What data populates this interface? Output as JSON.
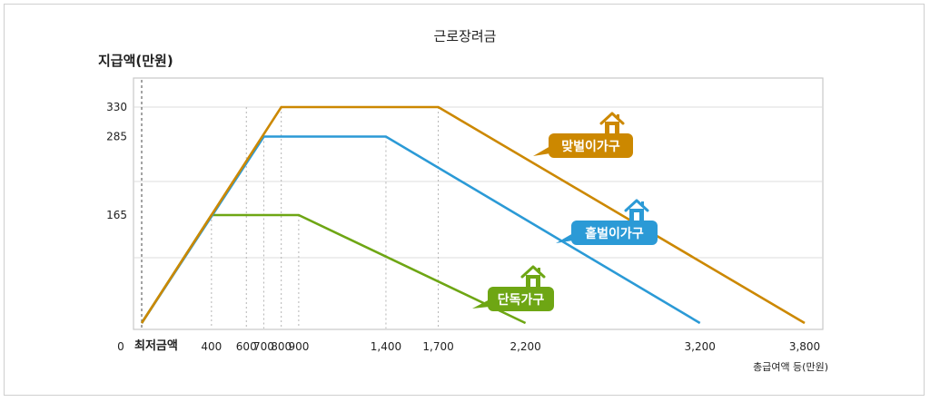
{
  "chart_data": {
    "type": "line",
    "title": "근로장려금",
    "ylabel": "지급액(만원)",
    "xlabel": "총급여액 등(만원)",
    "origin_label": "0",
    "min_wage_label": "최저금액",
    "x_ticks": [
      {
        "value": 400,
        "label": "400"
      },
      {
        "value": 600,
        "label": "600"
      },
      {
        "value": 700,
        "label": "700"
      },
      {
        "value": 800,
        "label": "800"
      },
      {
        "value": 900,
        "label": "900"
      },
      {
        "value": 1400,
        "label": "1,400"
      },
      {
        "value": 1700,
        "label": "1,700"
      },
      {
        "value": 2200,
        "label": "2,200"
      },
      {
        "value": 3200,
        "label": "3,200"
      },
      {
        "value": 3800,
        "label": "3,800"
      }
    ],
    "y_ticks": [
      {
        "value": 165,
        "label": "165"
      },
      {
        "value": 285,
        "label": "285"
      },
      {
        "value": 330,
        "label": "330"
      }
    ],
    "series": [
      {
        "name": "맞벌이가구",
        "color": "#cc8800",
        "points": [
          [
            0,
            0
          ],
          [
            800,
            330
          ],
          [
            1700,
            330
          ],
          [
            3800,
            0
          ]
        ]
      },
      {
        "name": "홑벌이가구",
        "color": "#2b9ad6",
        "points": [
          [
            0,
            0
          ],
          [
            700,
            285
          ],
          [
            1400,
            285
          ],
          [
            3200,
            0
          ]
        ]
      },
      {
        "name": "단독가구",
        "color": "#6ea614",
        "points": [
          [
            0,
            0
          ],
          [
            400,
            165
          ],
          [
            900,
            165
          ],
          [
            2200,
            0
          ]
        ]
      }
    ]
  }
}
